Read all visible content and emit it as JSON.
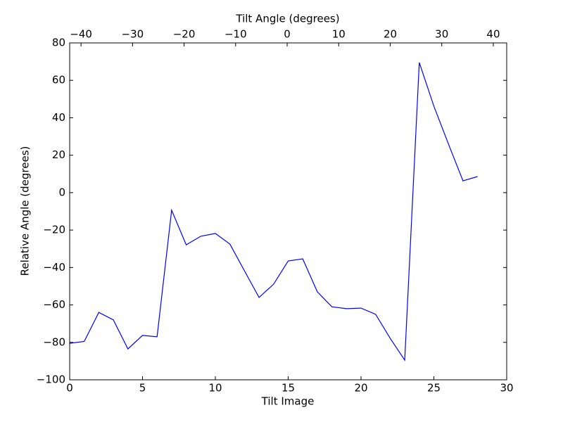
{
  "chart_data": {
    "type": "line",
    "xlabel": "Tilt Image",
    "ylabel": "Relative Angle (degrees)",
    "x2label": "Tilt Angle (degrees)",
    "x": [
      0,
      1,
      2,
      3,
      4,
      5,
      6,
      7,
      8,
      9,
      10,
      11,
      12,
      13,
      14,
      15,
      16,
      17,
      18,
      19,
      20,
      21,
      22,
      23,
      24,
      25,
      26,
      27,
      28
    ],
    "series": [
      {
        "color": "#0000ff",
        "values": [
          -80.5,
          -79.5,
          -64,
          -68,
          -83.5,
          -76.3,
          -77,
          -9.4,
          -27.9,
          -23.3,
          -21.8,
          -27.5,
          -41.8,
          -56,
          -48.9,
          -36.5,
          -35.4,
          -53,
          -61,
          -62,
          -61.7,
          -65,
          -77.8,
          -89.5,
          69.5,
          46.2,
          26,
          6.3,
          8.6
        ]
      }
    ],
    "xlim": [
      0,
      30
    ],
    "xticks": [
      0,
      5,
      10,
      15,
      20,
      25,
      30
    ],
    "ylim": [
      -100,
      80
    ],
    "yticks": [
      {
        "value": -100,
        "label": "−100"
      },
      {
        "value": -80,
        "label": "−80"
      },
      {
        "value": -60,
        "label": "−60"
      },
      {
        "value": -40,
        "label": "−40"
      },
      {
        "value": -20,
        "label": "−20"
      },
      0,
      20,
      40,
      60,
      80
    ],
    "x2lim": [
      -42.2,
      42.6
    ],
    "x2ticks": [
      {
        "value": -40,
        "label": "−40"
      },
      {
        "value": -30,
        "label": "−30"
      },
      {
        "value": -20,
        "label": "−20"
      },
      {
        "value": -10,
        "label": "−10"
      },
      0,
      10,
      20,
      30,
      40
    ],
    "grid": false
  }
}
